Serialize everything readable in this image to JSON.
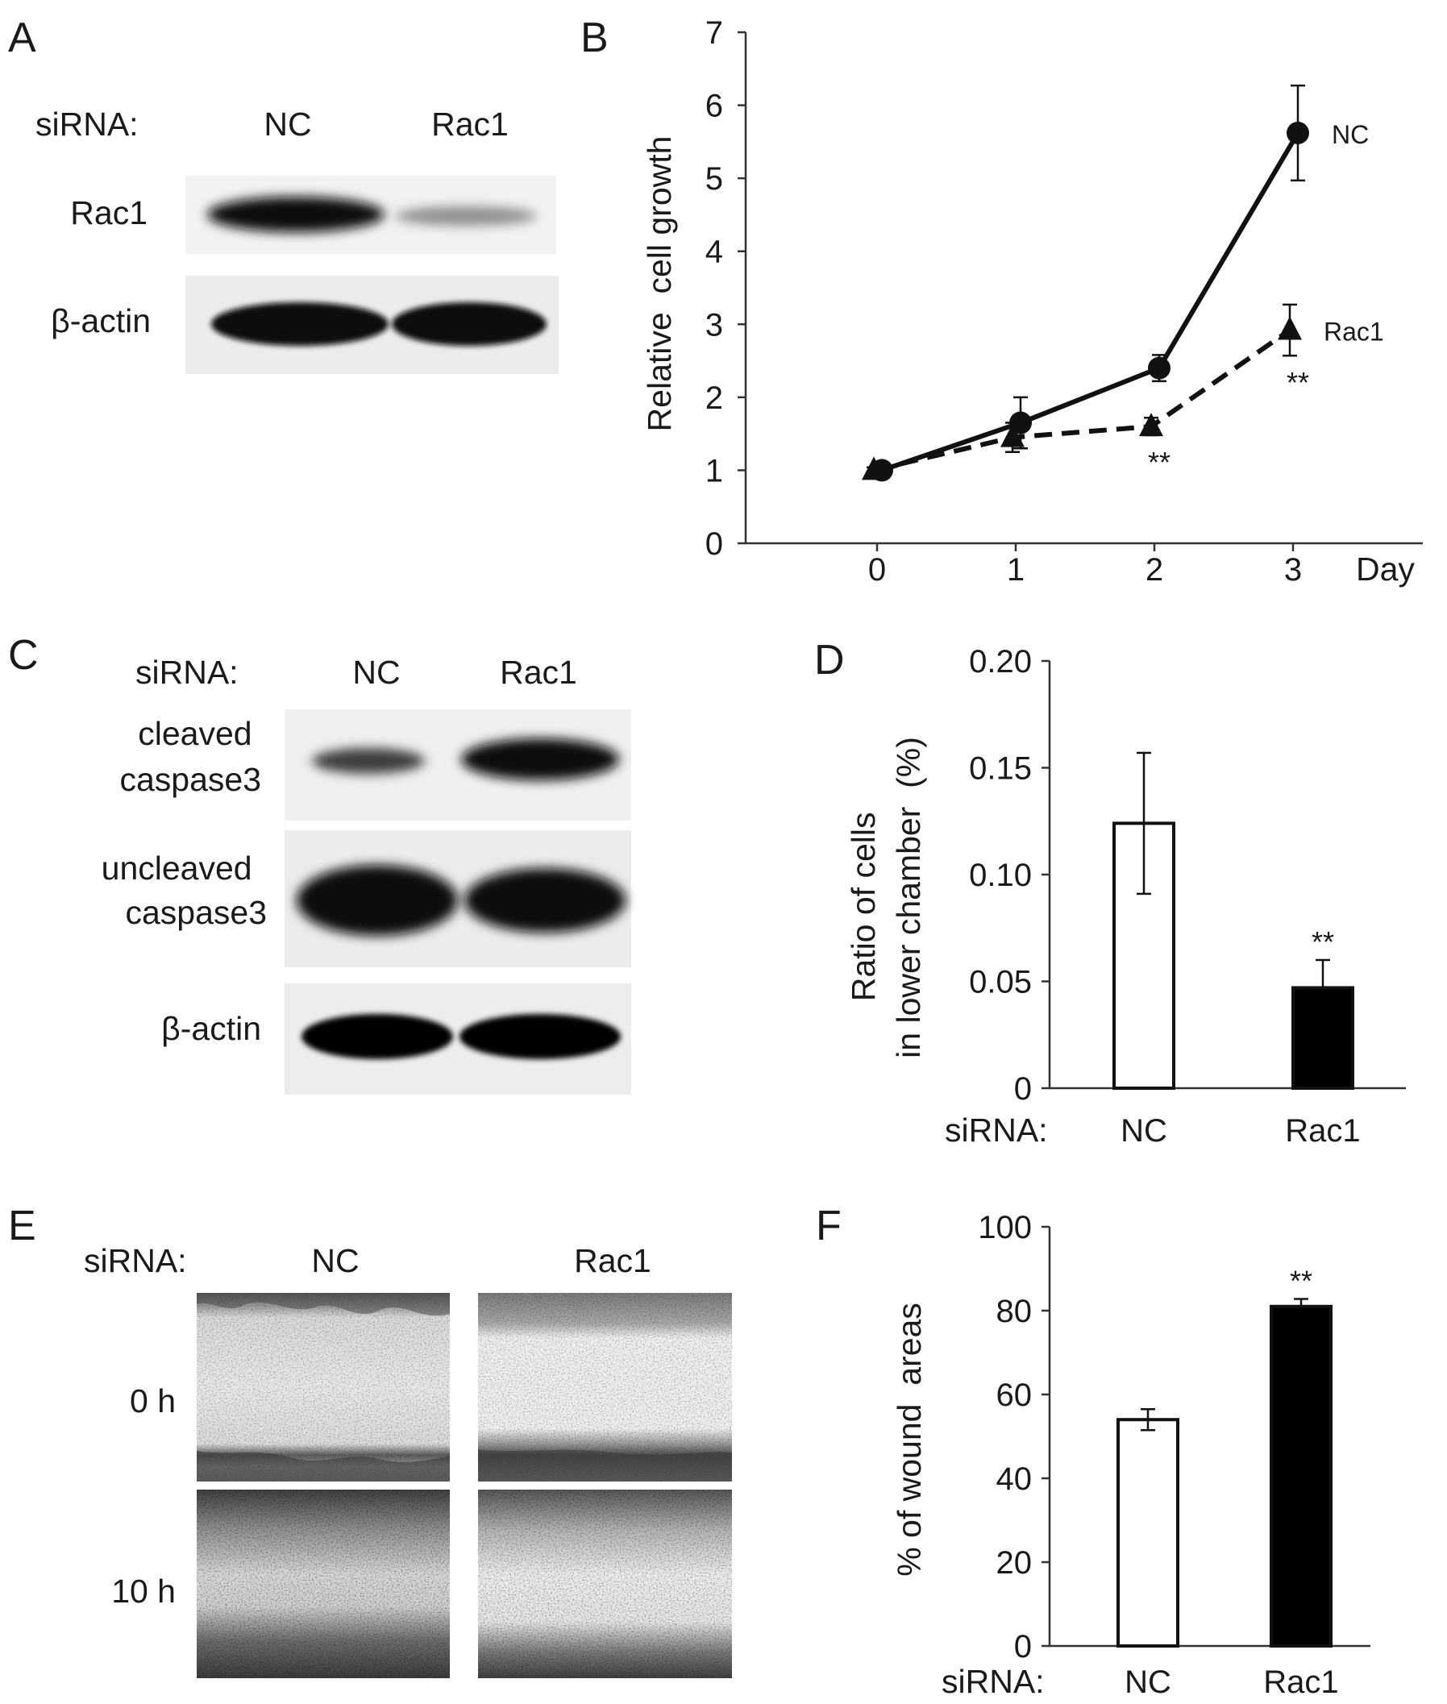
{
  "panels": {
    "A": {
      "letter": "A",
      "row_header": "siRNA:",
      "lanes": [
        "NC",
        "Rac1"
      ],
      "rows": [
        "Rac1",
        "β-actin"
      ]
    },
    "C": {
      "letter": "C",
      "row_header": "siRNA:",
      "lanes": [
        "NC",
        "Rac1"
      ],
      "rows": [
        [
          "cleaved",
          "caspase3"
        ],
        [
          "uncleaved",
          "caspase3"
        ],
        [
          "β-actin"
        ]
      ]
    },
    "E": {
      "letter": "E",
      "row_header": "siRNA:",
      "columns": [
        "NC",
        "Rac1"
      ],
      "rows": [
        "0 h",
        "10 h"
      ]
    }
  },
  "chart_data": [
    {
      "panel": "B",
      "type": "line",
      "ylabel": "Relative  cell growth",
      "xlabel": "Day",
      "x": [
        0,
        1,
        2,
        3
      ],
      "xlim": [
        -1,
        4
      ],
      "ylim": [
        0,
        7
      ],
      "yticks": [
        0,
        1,
        2,
        3,
        4,
        5,
        6,
        7
      ],
      "xticks": [
        0,
        1,
        2,
        3
      ],
      "series": [
        {
          "name": "NC",
          "values": [
            1.0,
            1.65,
            2.4,
            5.62
          ],
          "errors": [
            0.05,
            0.35,
            0.18,
            0.65
          ],
          "marker": "circle",
          "line": "solid"
        },
        {
          "name": "Rac1",
          "values": [
            1.0,
            1.45,
            1.6,
            2.92
          ],
          "errors": [
            0.04,
            0.2,
            0.12,
            0.35
          ],
          "marker": "triangle",
          "line": "dashed"
        }
      ],
      "annotations": [
        {
          "text": "**",
          "x": 2,
          "series": "Rac1"
        },
        {
          "text": "**",
          "x": 3,
          "series": "Rac1"
        }
      ]
    },
    {
      "panel": "D",
      "type": "bar",
      "ylabel_lines": [
        "Ratio of cells",
        "in lower chamber  (%)"
      ],
      "xlabel_prefix": "siRNA:",
      "categories": [
        "NC",
        "Rac1"
      ],
      "values": [
        0.124,
        0.047
      ],
      "errors": [
        0.033,
        0.013
      ],
      "fills": [
        "#ffffff",
        "#000000"
      ],
      "ylim": [
        0,
        0.2
      ],
      "ytick_labels": [
        "0",
        "0.05",
        "0.10",
        "0.15",
        "0.20"
      ],
      "annotations": [
        {
          "text": "**",
          "category": "Rac1"
        }
      ]
    },
    {
      "panel": "F",
      "type": "bar",
      "ylabel": "% of wound  areas",
      "xlabel_prefix": "siRNA:",
      "categories": [
        "NC",
        "Rac1"
      ],
      "values": [
        54,
        81
      ],
      "errors": [
        2.5,
        1.8
      ],
      "fills": [
        "#ffffff",
        "#000000"
      ],
      "ylim": [
        0,
        100
      ],
      "ytick_labels": [
        "0",
        "20",
        "40",
        "60",
        "80",
        "100"
      ],
      "annotations": [
        {
          "text": "**",
          "category": "Rac1"
        }
      ]
    }
  ]
}
